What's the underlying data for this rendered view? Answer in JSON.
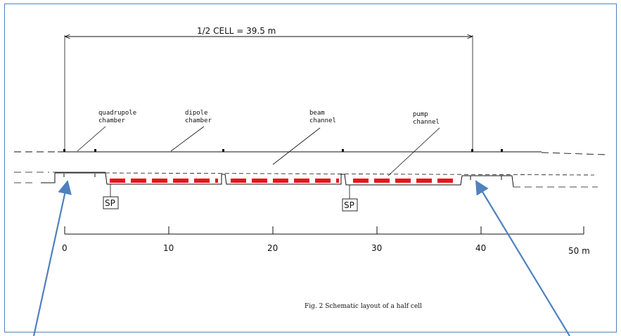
{
  "title": "1/2  CELL = 39.5 m",
  "labels": {
    "quadrupole": [
      "quadrupole",
      "chamber"
    ],
    "dipole": [
      "dipole",
      "chamber"
    ],
    "beam": [
      "beam",
      "channel"
    ],
    "pump": [
      "pump",
      "channel"
    ]
  },
  "sp_label": "SP",
  "scale": {
    "ticks": [
      "0",
      "10",
      "20",
      "30",
      "40",
      "50 m"
    ]
  },
  "caption": "Fig. 2  Schematic layout of a half cell",
  "colors": {
    "frame": "#4f81bd",
    "pump_dash": "#e8141c",
    "arrow": "#4f81bd",
    "ink": "#111111"
  }
}
